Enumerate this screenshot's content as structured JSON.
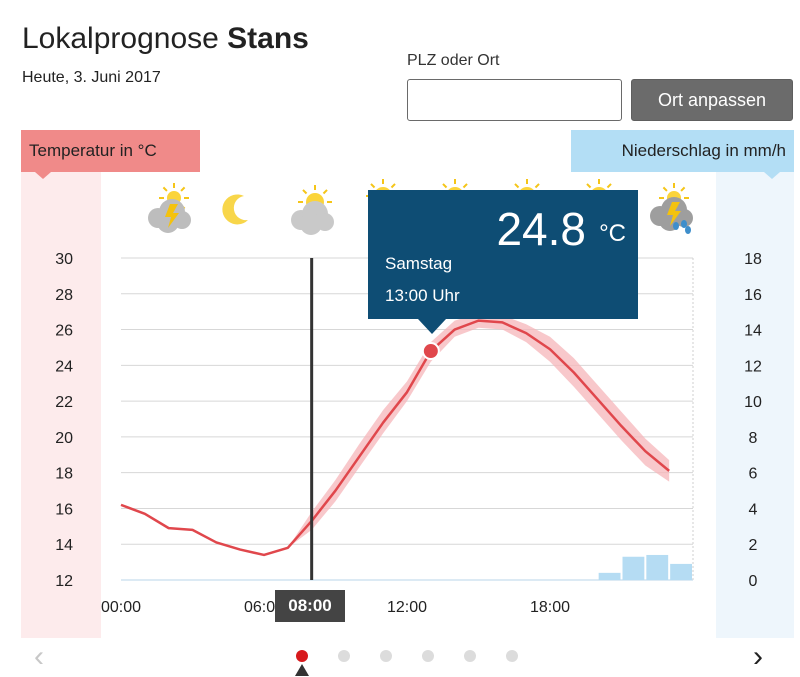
{
  "header": {
    "title_prefix": "Lokalprognose",
    "title_place": "Stans",
    "date": "Heute, 3. Juni 2017"
  },
  "search": {
    "label": "PLZ oder Ort",
    "value": "",
    "placeholder": "",
    "button_label": "Ort anpassen"
  },
  "axes": {
    "temp_label": "Temperatur in °C",
    "precip_label": "Niederschlag in mm/h"
  },
  "icons": [
    "thunderstorm-icon",
    "moon-icon",
    "partly-sunny-icon",
    "sun-icon",
    "sun-icon",
    "sun-icon",
    "sun-icon",
    "thunderstorm-rain-icon"
  ],
  "tooltip": {
    "value": "24.8",
    "unit": "°C",
    "day": "Samstag",
    "time": "13:00 Uhr"
  },
  "time_cursor": {
    "label": "08:00"
  },
  "pager": {
    "dots": 6,
    "active": 0
  },
  "colors": {
    "temp_line": "#e0474c",
    "temp_band": "#f6b6b9",
    "precip_bar": "#b5dcf3",
    "tooltip_bg": "#0e4d74",
    "temp_tag": "#f08a89",
    "precip_tag": "#b3def5"
  },
  "chart_data": {
    "type": "line",
    "x_ticks": [
      "00:00",
      "06:00",
      "12:00",
      "18:00"
    ],
    "y_left": {
      "label": "Temperatur in °C",
      "range": [
        12,
        30
      ],
      "ticks": [
        12,
        14,
        16,
        18,
        20,
        22,
        24,
        26,
        28,
        30
      ]
    },
    "y_right": {
      "label": "Niederschlag in mm/h",
      "range": [
        0,
        18
      ],
      "ticks": [
        0,
        2,
        4,
        6,
        8,
        10,
        12,
        14,
        16,
        18
      ]
    },
    "series": [
      {
        "kind": "temperature",
        "hours": [
          0,
          1,
          2,
          3,
          4,
          5,
          6,
          7,
          8,
          9,
          10,
          11,
          12,
          13,
          14,
          15,
          16,
          17,
          18,
          19,
          20,
          21,
          22,
          23
        ],
        "values": [
          16.2,
          15.7,
          14.9,
          14.8,
          14.1,
          13.7,
          13.4,
          13.8,
          15.3,
          17.0,
          18.9,
          20.8,
          22.5,
          24.8,
          26.0,
          26.5,
          26.4,
          25.8,
          24.9,
          23.6,
          22.1,
          20.6,
          19.2,
          18.1
        ],
        "band_low": [
          16.2,
          15.7,
          14.9,
          14.8,
          14.1,
          13.7,
          13.4,
          13.8,
          14.8,
          16.4,
          18.3,
          20.2,
          22.0,
          24.2,
          25.6,
          26.1,
          26.0,
          25.3,
          24.2,
          22.8,
          21.3,
          19.8,
          18.4,
          17.5
        ],
        "band_high": [
          16.2,
          15.7,
          14.9,
          14.8,
          14.1,
          13.7,
          13.4,
          13.8,
          15.8,
          17.6,
          19.6,
          21.5,
          23.1,
          25.3,
          26.5,
          26.9,
          26.8,
          26.3,
          25.6,
          24.4,
          22.9,
          21.4,
          19.9,
          18.7
        ]
      },
      {
        "kind": "precipitation",
        "hours": [
          20,
          21,
          22,
          23
        ],
        "values": [
          0.4,
          1.3,
          1.4,
          0.9
        ]
      }
    ],
    "highlight": {
      "hour": 13,
      "value": 24.8
    },
    "cursor_hour": 8,
    "grid": true
  }
}
